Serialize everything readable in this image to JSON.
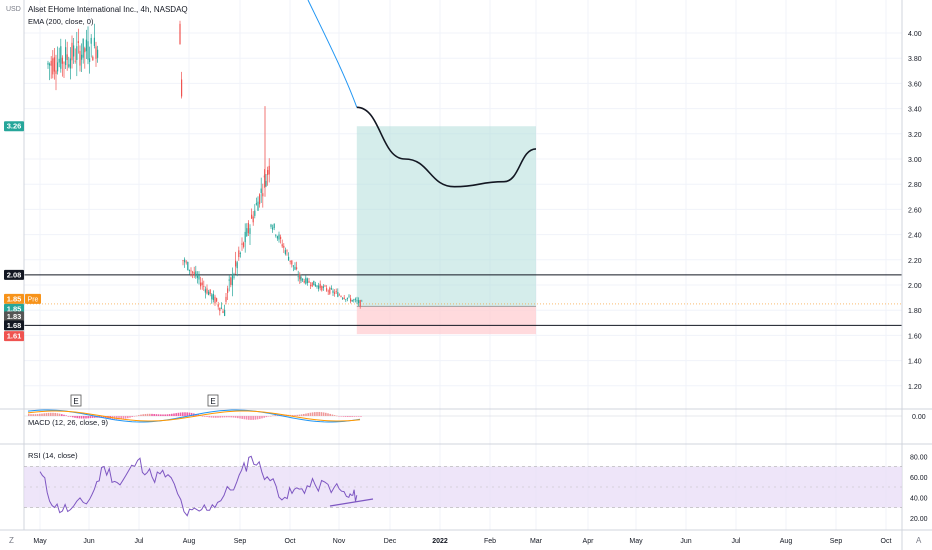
{
  "header": {
    "title": "Alset EHome International Inc., 4h, NASDAQ",
    "indicator": "EMA (200, close, 0)",
    "currency": "USD"
  },
  "colors": {
    "up": "#26a69a",
    "down": "#ef5350",
    "ema": "#2196f3",
    "rsi": "#7e57c2",
    "profit_zone": "#b2dfdb",
    "loss_zone": "#ffcdd2",
    "pre_tag": "#f7931a",
    "badge_green": "#26a69a",
    "badge_red": "#ef5350",
    "badge_black": "#131722",
    "badge_gray": "#555555"
  },
  "axes": {
    "y_ticks": [
      "4.00",
      "3.80",
      "3.60",
      "3.40",
      "3.20",
      "3.00",
      "2.80",
      "2.60",
      "2.40",
      "2.20",
      "2.00",
      "1.80",
      "1.60",
      "1.40",
      "1.20"
    ],
    "x_ticks": [
      "May",
      "Jun",
      "Jul",
      "Aug",
      "Sep",
      "Oct",
      "Nov",
      "Dec",
      "2022",
      "Feb",
      "Mar",
      "Apr",
      "May",
      "Jun",
      "Jul",
      "Aug",
      "Sep",
      "Oct"
    ],
    "x_ticks_bold": [
      "2022"
    ],
    "macd_ticks": [
      "0.00"
    ],
    "rsi_ticks": [
      "80.00",
      "60.00",
      "40.00",
      "20.00"
    ]
  },
  "badges": {
    "target": "3.26",
    "level_top": "2.08",
    "pre_price": "1.85",
    "pre_label": "Pre",
    "price_green": "1.85",
    "price_gray": "1.83",
    "level_bottom": "1.68",
    "stop": "1.61"
  },
  "earnings_marker": "E",
  "macd": {
    "label": "MACD (12, 26, close, 9)"
  },
  "rsi": {
    "label": "RSI (14, close)"
  },
  "bottom_bar": {
    "zoom_left": "Z",
    "zoom_right": "A"
  },
  "chart_data": {
    "type": "candlestick",
    "title": "Alset EHome International Inc., 4h, NASDAQ",
    "ylim": [
      1.1,
      4.1
    ],
    "series": [
      {
        "name": "EMA (200, close, 0)",
        "x": [
          "2021-10-12",
          "2021-10-25",
          "2021-11-08",
          "2021-11-15"
        ],
        "values": [
          4.05,
          3.85,
          3.62,
          3.41
        ]
      }
    ],
    "horizontal_levels": [
      2.08,
      1.68
    ],
    "position": {
      "entry": 1.83,
      "target": 3.26,
      "stop": 1.61,
      "start": "2021-11-15",
      "end": "2022-03-07"
    },
    "projection": {
      "x": [
        "2021-11-15",
        "2021-12-15",
        "2022-01-15",
        "2022-02-15",
        "2022-03-07"
      ],
      "y": [
        3.41,
        3.0,
        2.78,
        2.82,
        3.08
      ]
    },
    "macd": {
      "name": "MACD (12, 26, close, 9)",
      "ylim": [
        -0.2,
        0.2
      ],
      "zero": 0.0
    },
    "rsi": {
      "name": "RSI (14, close)",
      "ylim": [
        10,
        90
      ],
      "upper_band": 70,
      "lower_band": 30,
      "x": [
        "2021-05-01",
        "2021-05-10",
        "2021-05-20",
        "2021-06-01",
        "2021-06-10",
        "2021-06-20",
        "2021-07-01",
        "2021-07-10",
        "2021-07-20",
        "2021-08-01",
        "2021-08-10",
        "2021-08-20",
        "2021-09-01",
        "2021-09-10",
        "2021-09-20",
        "2021-10-01",
        "2021-10-10",
        "2021-10-20",
        "2021-11-01",
        "2021-11-10",
        "2021-11-15"
      ],
      "y": [
        65,
        30,
        28,
        38,
        70,
        52,
        76,
        60,
        62,
        22,
        28,
        35,
        55,
        80,
        60,
        40,
        48,
        52,
        50,
        40,
        42
      ]
    }
  }
}
